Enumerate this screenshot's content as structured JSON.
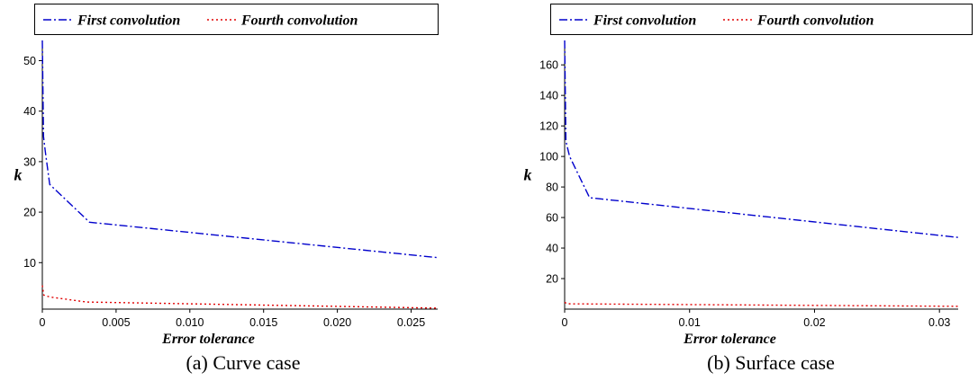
{
  "chart_data": [
    {
      "type": "line",
      "caption": "(a) Curve case",
      "xlabel": "Error tolerance",
      "ylabel": "k",
      "xlim": [
        0,
        0.0268
      ],
      "ylim": [
        0.8,
        54
      ],
      "xticks": [
        0,
        0.005,
        0.01,
        0.015,
        0.02,
        0.025
      ],
      "xtick_labels": [
        "0",
        "0.005",
        "0.010",
        "0.015",
        "0.020",
        "0.025"
      ],
      "yticks": [
        10,
        20,
        30,
        40,
        50
      ],
      "ytick_labels": [
        "10",
        "20",
        "30",
        "40",
        "50"
      ],
      "legend_position": "top",
      "series": [
        {
          "name": "First convolution",
          "color": "#0000cc",
          "style": "dashdot",
          "x": [
            0.0,
            8e-05,
            0.0002,
            0.0005,
            0.0032,
            0.0268
          ],
          "y": [
            54,
            35,
            32,
            25.5,
            18,
            11
          ]
        },
        {
          "name": "Fourth convolution",
          "color": "#e00000",
          "style": "dotted",
          "x": [
            0.0,
            0.0001,
            0.0005,
            0.003,
            0.0268
          ],
          "y": [
            5.5,
            3.6,
            3.2,
            2.2,
            1.0
          ]
        }
      ]
    },
    {
      "type": "line",
      "caption": "(b) Surface case",
      "xlabel": "Error tolerance",
      "ylabel": "k",
      "xlim": [
        0,
        0.0315
      ],
      "ylim": [
        0,
        176
      ],
      "xticks": [
        0,
        0.01,
        0.02,
        0.03
      ],
      "xtick_labels": [
        "0",
        "0.01",
        "0.02",
        "0.03"
      ],
      "yticks": [
        20,
        40,
        60,
        80,
        100,
        120,
        140,
        160
      ],
      "ytick_labels": [
        "20",
        "40",
        "60",
        "80",
        "100",
        "120",
        "140",
        "160"
      ],
      "legend_position": "top",
      "series": [
        {
          "name": "First convolution",
          "color": "#0000cc",
          "style": "dashdot",
          "x": [
            0.0,
            0.0001,
            0.0004,
            0.002,
            0.0315
          ],
          "y": [
            176,
            110,
            100,
            73,
            47
          ]
        },
        {
          "name": "Fourth convolution",
          "color": "#e00000",
          "style": "dotted",
          "x": [
            0.0,
            0.0002,
            0.0315
          ],
          "y": [
            4.5,
            3.5,
            1.8
          ]
        }
      ]
    }
  ]
}
